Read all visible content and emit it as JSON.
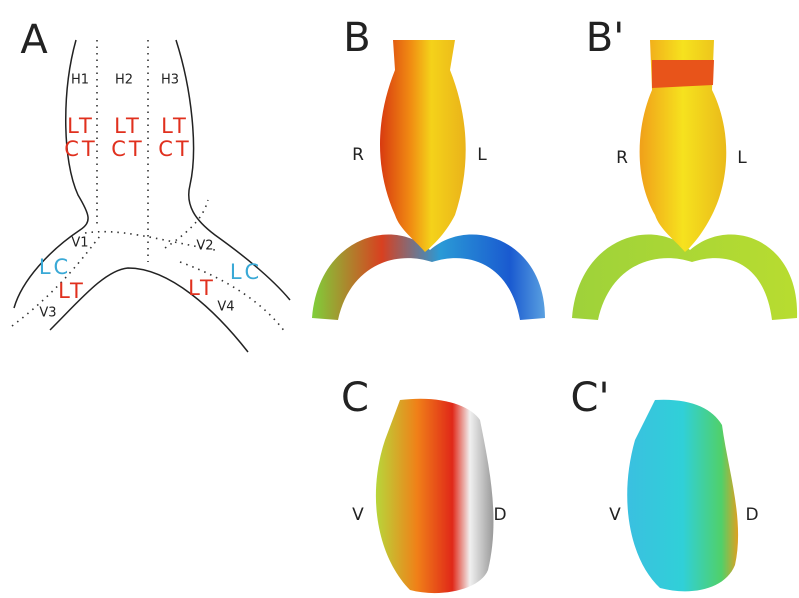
{
  "panels": [
    {
      "label": "A",
      "labels": [
        "H1",
        "H2",
        "H3",
        "LT",
        "LT",
        "LT",
        "CT",
        "CT",
        "CT",
        "V1",
        "V2",
        "LC",
        "LC",
        "LT",
        "LT",
        "V3",
        "V4"
      ]
    },
    {
      "label": "B",
      "labels": [
        "R",
        "L"
      ]
    },
    {
      "label": "B'",
      "labels": [
        "R",
        "L"
      ]
    },
    {
      "label": "C",
      "labels": [
        "V",
        "D"
      ]
    },
    {
      "label": "C'",
      "labels": [
        "V",
        "D"
      ]
    }
  ]
}
